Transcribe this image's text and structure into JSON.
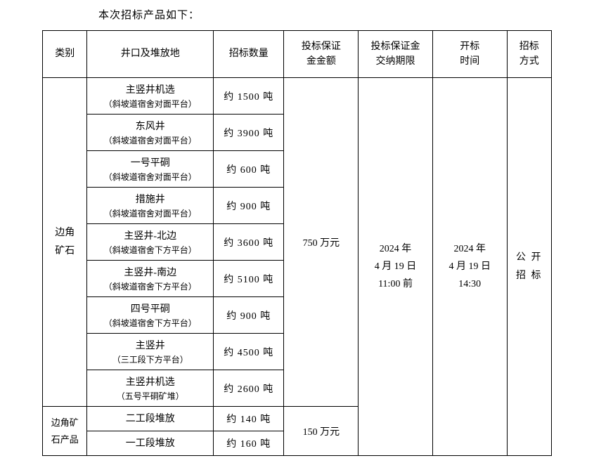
{
  "title": "本次招标产品如下：",
  "headers": {
    "category": "类别",
    "location": "井口及堆放地",
    "quantity": "招标数量",
    "deposit_amount": "投标保证\n金金额",
    "deposit_deadline": "投标保证金\n交纳期限",
    "opening_time": "开标\n时间",
    "method": "招标\n方式"
  },
  "category1": "边角\n矿石",
  "category2": "边角矿\n石产品",
  "rows_g1": [
    {
      "loc_main": "主竖井机选",
      "loc_sub": "（斜坡道宿舍对面平台）",
      "qty": "约 1500 吨"
    },
    {
      "loc_main": "东风井",
      "loc_sub": "（斜坡道宿舍对面平台）",
      "qty": "约 3900 吨"
    },
    {
      "loc_main": "一号平硐",
      "loc_sub": "（斜坡道宿舍对面平台）",
      "qty": "约 600 吨"
    },
    {
      "loc_main": "措施井",
      "loc_sub": "（斜坡道宿舍对面平台）",
      "qty": "约 900 吨"
    },
    {
      "loc_main": "主竖井-北边",
      "loc_sub": "（斜坡道宿舍下方平台）",
      "qty": "约 3600 吨"
    },
    {
      "loc_main": "主竖井-南边",
      "loc_sub": "（斜坡道宿舍下方平台）",
      "qty": "约 5100 吨"
    },
    {
      "loc_main": "四号平硐",
      "loc_sub": "（斜坡道宿舍下方平台）",
      "qty": "约 900 吨"
    },
    {
      "loc_main": "主竖井",
      "loc_sub": "（三工段下方平台）",
      "qty": "约 4500 吨"
    },
    {
      "loc_main": "主竖井机选",
      "loc_sub": "（五号平硐矿堆）",
      "qty": "约 2600 吨"
    }
  ],
  "rows_g2": [
    {
      "loc_main": "二工段堆放",
      "qty": "约 140 吨"
    },
    {
      "loc_main": "一工段堆放",
      "qty": "约 160 吨"
    }
  ],
  "deposit1": "750 万元",
  "deposit2": "150 万元",
  "deadline": "2024 年\n4 月 19 日\n11:00 前",
  "opening": "2024 年\n4 月 19 日\n14:30",
  "method": "公 开\n招 标"
}
